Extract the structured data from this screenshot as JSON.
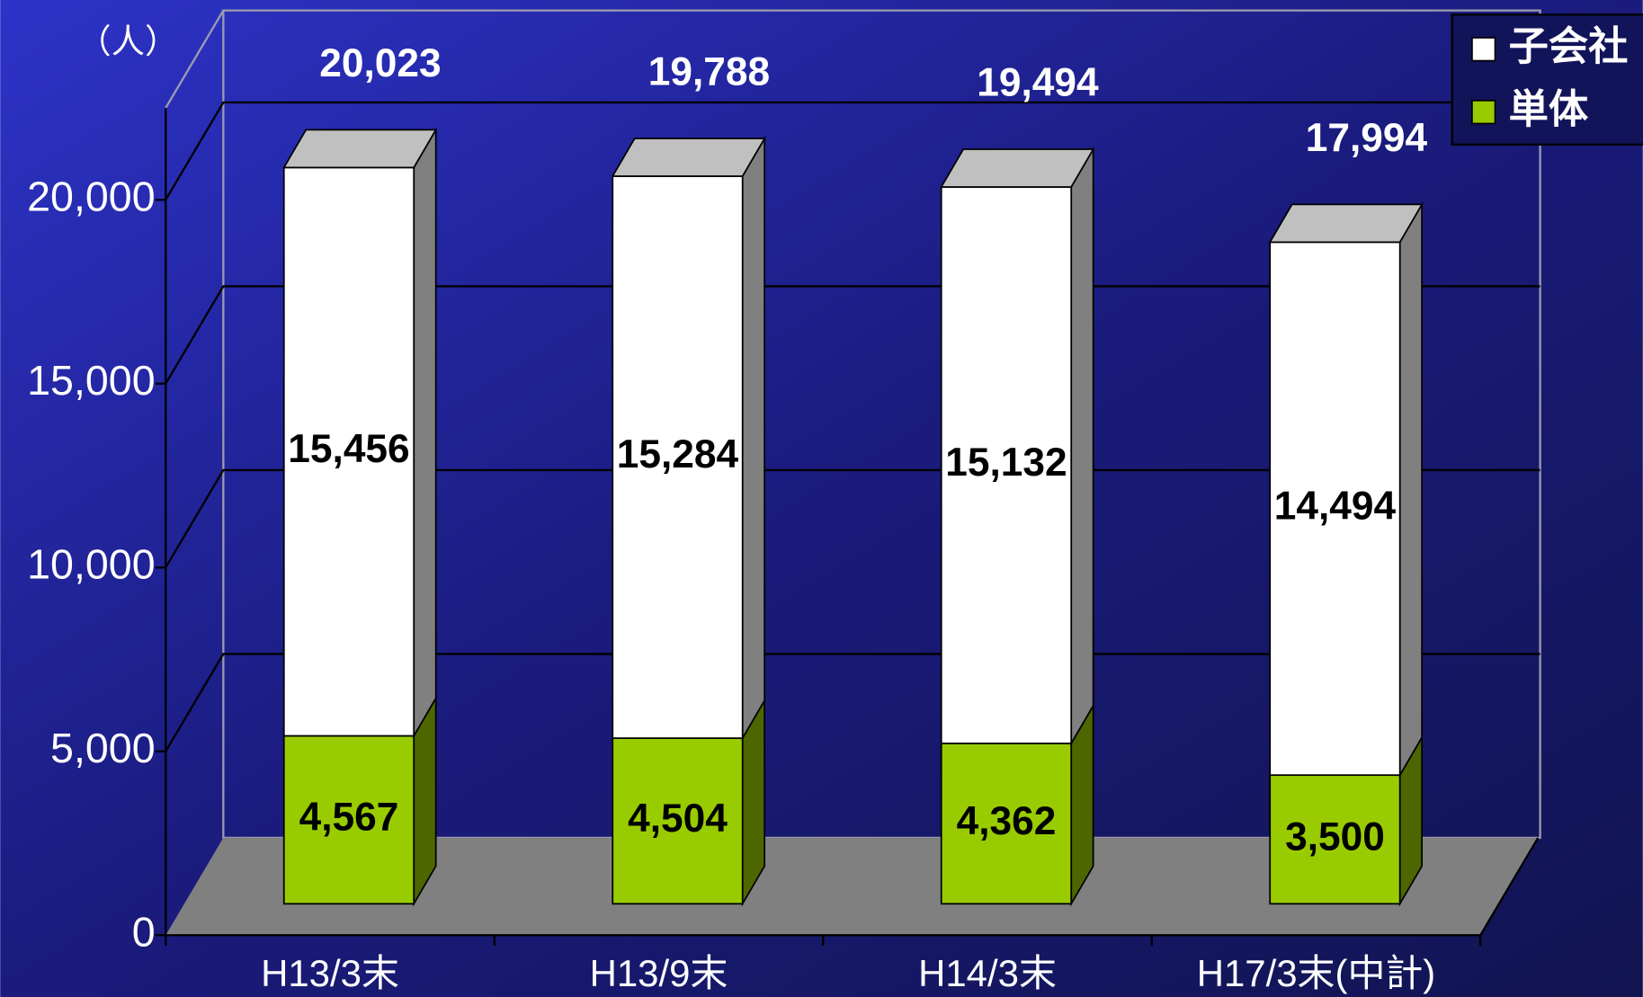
{
  "chart_data": {
    "type": "bar",
    "stacked": true,
    "unit_label": "（人）",
    "categories": [
      "H13/3末",
      "H13/9末",
      "H14/3末",
      "H17/3末(中計)"
    ],
    "series": [
      {
        "name": "単体",
        "color": "#99cc00",
        "values": [
          4567,
          4504,
          4362,
          3500
        ],
        "value_labels": [
          "4,567",
          "4,504",
          "4,362",
          "3,500"
        ]
      },
      {
        "name": "子会社",
        "color": "#ffffff",
        "values": [
          15456,
          15284,
          15132,
          14494
        ],
        "value_labels": [
          "15,456",
          "15,284",
          "15,132",
          "14,494"
        ]
      }
    ],
    "totals": [
      20023,
      19788,
      19494,
      17994
    ],
    "total_labels": [
      "20,023",
      "19,788",
      "19,494",
      "17,994"
    ],
    "ylim": [
      0,
      22500
    ],
    "yticks": [
      0,
      {
        "value": 5000,
        "label": "5,000"
      },
      {
        "value": 10000,
        "label": "10,000"
      },
      {
        "value": 15000,
        "label": "15,000"
      },
      {
        "value": 20000,
        "label": "20,000"
      }
    ],
    "grid": true,
    "legend": "upper-right"
  }
}
